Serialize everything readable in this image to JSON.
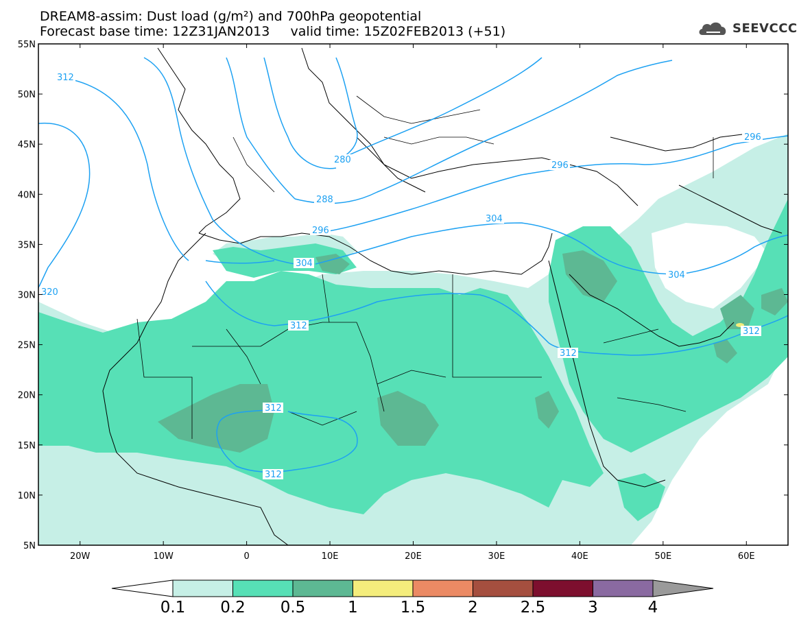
{
  "title": {
    "line1": "DREAM8-assim: Dust load (g/m²) and 700hPa geopotential",
    "line2": "Forecast base time: 12Z31JAN2013     valid time: 15Z02FEB2013 (+51)"
  },
  "logo": {
    "text": "SEEVCCC",
    "icon": "cloud-icon"
  },
  "axes": {
    "lat_ticks": [
      "55N",
      "50N",
      "45N",
      "40N",
      "35N",
      "30N",
      "25N",
      "20N",
      "15N",
      "10N",
      "5N"
    ],
    "lon_ticks": [
      "20W",
      "10W",
      "0",
      "10E",
      "20E",
      "30E",
      "40E",
      "50E",
      "60E"
    ],
    "lon_range": [
      -25,
      65
    ],
    "lat_range": [
      5,
      55
    ]
  },
  "contours": {
    "variable": "700hPa geopotential",
    "labels": [
      "312",
      "280",
      "288",
      "296",
      "304",
      "312",
      "320",
      "304",
      "312",
      "312",
      "312",
      "296",
      "304",
      "296",
      "312"
    ],
    "color": "#1da1f2"
  },
  "colorbar": {
    "labels": [
      "0.1",
      "0.2",
      "0.5",
      "1",
      "1.5",
      "2",
      "2.5",
      "3",
      "4"
    ],
    "colors": [
      "#ffffff",
      "#c6efe6",
      "#57e0b6",
      "#5db893",
      "#f4ed7c",
      "#eb8a64",
      "#a54f3f",
      "#7d0f2e",
      "#8a6aa1",
      "#9a9a9a"
    ]
  },
  "dust_levels": {
    "light": "#c6efe6",
    "medium": "#57e0b6",
    "heavy": "#5db893"
  }
}
